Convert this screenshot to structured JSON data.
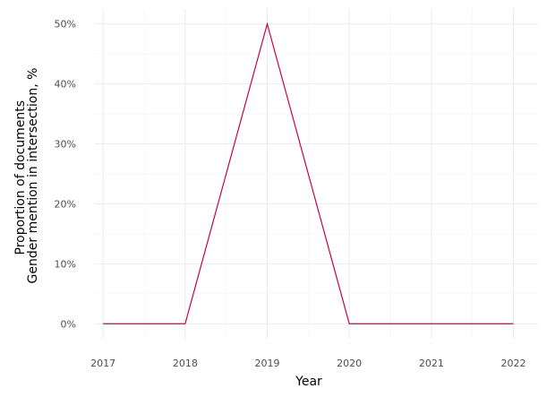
{
  "chart_data": {
    "type": "line",
    "title": "",
    "xlabel": "Year",
    "ylabel_lines": [
      "Proportion of documents",
      "Gender mention in intersection, %"
    ],
    "x": [
      2017,
      2018,
      2019,
      2020,
      2021,
      2022
    ],
    "x_tick_labels": [
      "2017",
      "2018",
      "2019",
      "2020",
      "2021",
      "2022"
    ],
    "y_ticks": [
      0,
      10,
      20,
      30,
      40,
      50
    ],
    "y_tick_labels": [
      "0%",
      "10%",
      "20%",
      "30%",
      "40%",
      "50%"
    ],
    "series": [
      {
        "values": [
          0,
          0,
          50,
          0,
          0,
          0
        ],
        "color": "#c8004f"
      }
    ],
    "xlim": [
      2016.9,
      2022.3
    ],
    "ylim": [
      -2.5,
      52.5
    ],
    "grid": true,
    "legend": "none",
    "colors": {
      "line": "#c8004f",
      "grid_major": "#ebebeb",
      "grid_minor": "#f5f5f5",
      "tick_text": "#4d4d4d"
    }
  }
}
